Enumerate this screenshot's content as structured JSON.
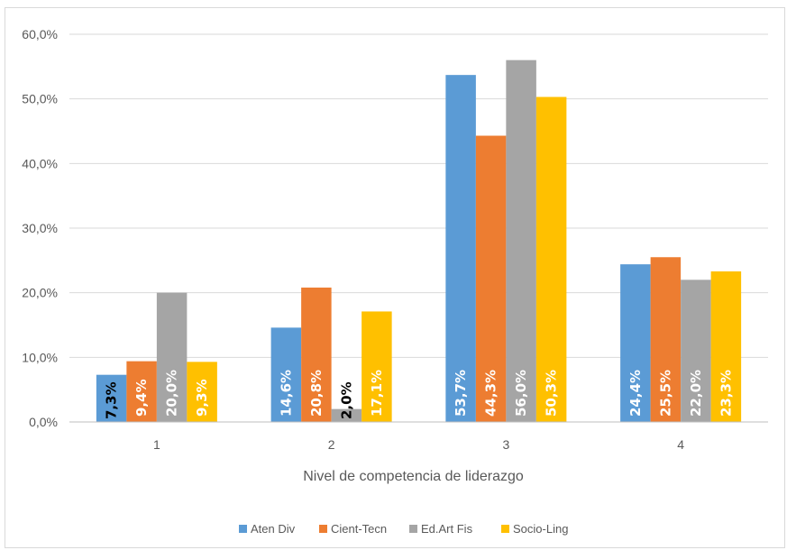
{
  "chart_data": {
    "type": "bar",
    "title": "",
    "xlabel": "Nivel de competencia de liderazgo",
    "ylabel": "",
    "categories": [
      "1",
      "2",
      "3",
      "4"
    ],
    "ylim": [
      0,
      60
    ],
    "yticks": [
      "0,0%",
      "10,0%",
      "20,0%",
      "30,0%",
      "40,0%",
      "50,0%",
      "60,0%"
    ],
    "grid": true,
    "legend_position": "bottom",
    "series": [
      {
        "name": "Aten Div",
        "color": "#5b9bd5",
        "values": [
          7.3,
          14.6,
          53.7,
          24.4
        ],
        "labels": [
          "7,3%",
          "14,6%",
          "53,7%",
          "24,4%"
        ]
      },
      {
        "name": "Cient-Tecn",
        "color": "#ed7d31",
        "values": [
          9.4,
          20.8,
          44.3,
          25.5
        ],
        "labels": [
          "9,4%",
          "20,8%",
          "44,3%",
          "25,5%"
        ]
      },
      {
        "name": "Ed.Art Fis",
        "color": "#a5a5a5",
        "values": [
          20.0,
          2.0,
          56.0,
          22.0
        ],
        "labels": [
          "20,0%",
          "2,0%",
          "56,0%",
          "22,0%"
        ]
      },
      {
        "name": "Socio-Ling",
        "color": "#ffc000",
        "values": [
          9.3,
          17.1,
          50.3,
          23.3
        ],
        "labels": [
          "9,3%",
          "17,1%",
          "50,3%",
          "23,3%"
        ]
      }
    ]
  }
}
